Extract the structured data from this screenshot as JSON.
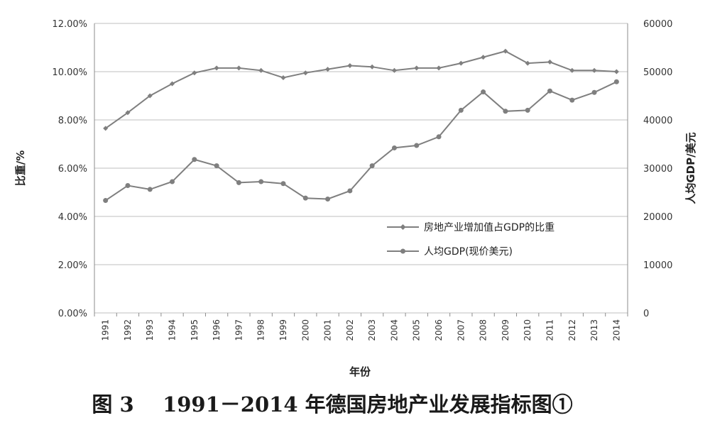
{
  "chart_data": {
    "type": "line",
    "categories": [
      "1991",
      "1992",
      "1993",
      "1994",
      "1995",
      "1996",
      "1997",
      "1998",
      "1999",
      "2000",
      "2001",
      "2002",
      "2003",
      "2004",
      "2005",
      "2006",
      "2007",
      "2008",
      "2009",
      "2010",
      "2011",
      "2012",
      "2013",
      "2014"
    ],
    "series": [
      {
        "name": "房地产业增加值占GDP的比重",
        "axis": "left",
        "marker": "diamond",
        "values": [
          7.65,
          8.3,
          9.0,
          9.5,
          9.95,
          10.15,
          10.15,
          10.05,
          9.75,
          9.95,
          10.1,
          10.25,
          10.2,
          10.05,
          10.15,
          10.15,
          10.35,
          10.6,
          10.85,
          10.35,
          10.4,
          10.05,
          10.05,
          10.0
        ]
      },
      {
        "name": "人均GDP(现价美元)",
        "axis": "right",
        "marker": "circle",
        "values": [
          23300,
          26400,
          25600,
          27200,
          31800,
          30500,
          27000,
          27200,
          26800,
          23800,
          23600,
          25300,
          30500,
          34200,
          34700,
          36500,
          42000,
          45800,
          41800,
          42000,
          46000,
          44100,
          45700,
          47900
        ]
      }
    ],
    "y_left": {
      "label": "比重/%",
      "ylim": [
        0,
        12
      ],
      "ticks": [
        "0.00%",
        "2.00%",
        "4.00%",
        "6.00%",
        "8.00%",
        "10.00%",
        "12.00%"
      ]
    },
    "y_right": {
      "label": "人均GDP/美元",
      "ylim": [
        0,
        60000
      ],
      "ticks": [
        "0",
        "10000",
        "20000",
        "30000",
        "40000",
        "50000",
        "60000"
      ]
    },
    "xlabel": "年份",
    "grid": "horizontal",
    "legend_position": "center-right",
    "line_color": "#7f7f7f"
  },
  "caption": "图 3    1991－2014 年德国房地产业发展指标图①"
}
